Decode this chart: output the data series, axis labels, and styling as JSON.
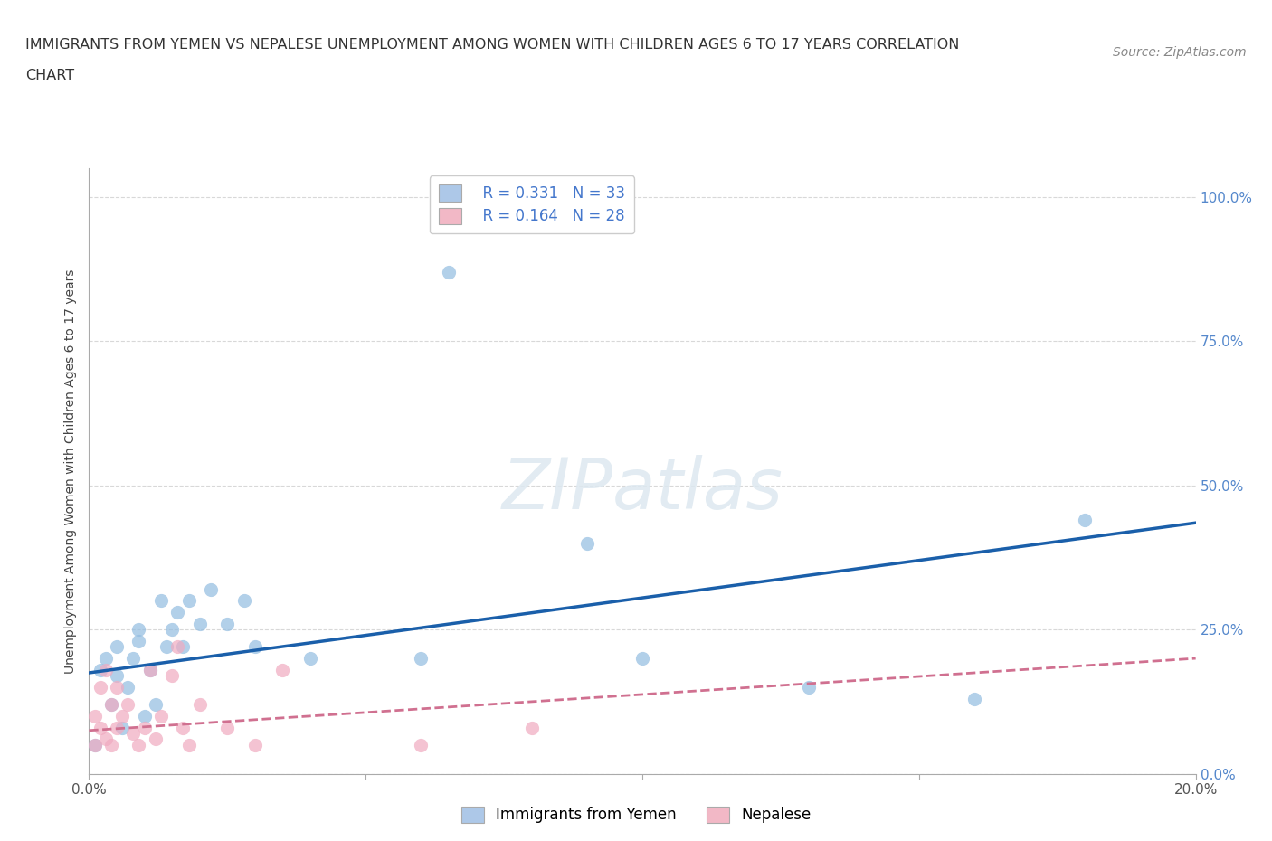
{
  "title_line1": "IMMIGRANTS FROM YEMEN VS NEPALESE UNEMPLOYMENT AMONG WOMEN WITH CHILDREN AGES 6 TO 17 YEARS CORRELATION",
  "title_line2": "CHART",
  "source_text": "Source: ZipAtlas.com",
  "ylabel": "Unemployment Among Women with Children Ages 6 to 17 years",
  "xlim": [
    0.0,
    0.2
  ],
  "ylim": [
    0.0,
    1.05
  ],
  "yticks": [
    0.0,
    0.25,
    0.5,
    0.75,
    1.0
  ],
  "ytick_labels": [
    "0.0%",
    "25.0%",
    "50.0%",
    "75.0%",
    "100.0%"
  ],
  "xticks": [
    0.0,
    0.05,
    0.1,
    0.15,
    0.2
  ],
  "xtick_labels": [
    "0.0%",
    "",
    "",
    "",
    "20.0%"
  ],
  "legend_entries": [
    {
      "label": "Immigrants from Yemen",
      "R": "R = 0.331",
      "N": "N = 33",
      "color": "#adc8e8"
    },
    {
      "label": "Nepalese",
      "R": "R = 0.164",
      "N": "N = 28",
      "color": "#f2b8c6"
    }
  ],
  "watermark": "ZIPatlas",
  "yemen_scatter_x": [
    0.001,
    0.002,
    0.003,
    0.004,
    0.005,
    0.005,
    0.006,
    0.007,
    0.008,
    0.009,
    0.009,
    0.01,
    0.011,
    0.012,
    0.013,
    0.014,
    0.015,
    0.016,
    0.017,
    0.018,
    0.02,
    0.022,
    0.025,
    0.028,
    0.03,
    0.04,
    0.06,
    0.065,
    0.09,
    0.1,
    0.13,
    0.16,
    0.18
  ],
  "yemen_scatter_y": [
    0.05,
    0.18,
    0.2,
    0.12,
    0.22,
    0.17,
    0.08,
    0.15,
    0.2,
    0.23,
    0.25,
    0.1,
    0.18,
    0.12,
    0.3,
    0.22,
    0.25,
    0.28,
    0.22,
    0.3,
    0.26,
    0.32,
    0.26,
    0.3,
    0.22,
    0.2,
    0.2,
    0.87,
    0.4,
    0.2,
    0.15,
    0.13,
    0.44
  ],
  "nepal_scatter_x": [
    0.001,
    0.001,
    0.002,
    0.002,
    0.003,
    0.003,
    0.004,
    0.004,
    0.005,
    0.005,
    0.006,
    0.007,
    0.008,
    0.009,
    0.01,
    0.011,
    0.012,
    0.013,
    0.015,
    0.016,
    0.017,
    0.018,
    0.02,
    0.025,
    0.03,
    0.035,
    0.06,
    0.08
  ],
  "nepal_scatter_y": [
    0.05,
    0.1,
    0.08,
    0.15,
    0.18,
    0.06,
    0.12,
    0.05,
    0.15,
    0.08,
    0.1,
    0.12,
    0.07,
    0.05,
    0.08,
    0.18,
    0.06,
    0.1,
    0.17,
    0.22,
    0.08,
    0.05,
    0.12,
    0.08,
    0.05,
    0.18,
    0.05,
    0.08
  ],
  "yemen_line_x": [
    0.0,
    0.2
  ],
  "yemen_line_y": [
    0.175,
    0.435
  ],
  "nepal_line_x": [
    0.0,
    0.2
  ],
  "nepal_line_y": [
    0.075,
    0.2
  ],
  "scatter_color_yemen": "#92bce0",
  "scatter_color_nepal": "#f0aac0",
  "line_color_yemen": "#1a5faa",
  "line_color_nepal": "#d07090",
  "background_color": "#ffffff",
  "grid_color": "#d8d8d8"
}
